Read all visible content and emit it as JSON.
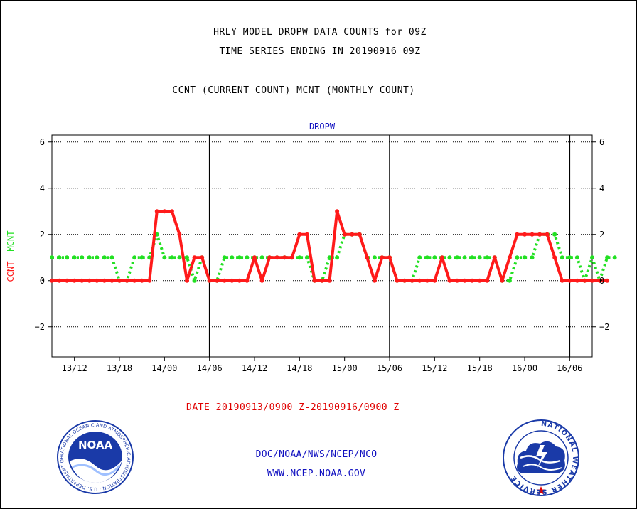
{
  "header": {
    "title_line1": "HRLY MODEL DROPW DATA COUNTS for 09Z",
    "title_line2": "TIME SERIES ENDING IN 20190916 09Z",
    "title_line3": "CCNT (CURRENT COUNT) MCNT (MONTHLY COUNT)"
  },
  "footer": {
    "date_range": "DATE 20190913/0900 Z-20190916/0900 Z",
    "credit_line1": "DOC/NOAA/NWS/NCEP/NCO",
    "credit_line2": "WWW.NCEP.NOAA.GOV"
  },
  "logos": {
    "left_text": "NOAA",
    "left_ring": "NATIONAL OCEANIC AND ATMOSPHERIC ADMINISTRATION · U.S. DEPARTMENT OF COMMERCE",
    "right_ring": "NATIONAL WEATHER SERVICE"
  },
  "colors": {
    "ccnt": "#ff1a1a",
    "mcnt": "#22e022",
    "panel_title": "#1010c0",
    "frame": "#000000"
  },
  "chart_data": {
    "type": "line",
    "panel_title": "DROPW",
    "ylabel_ccnt": "CCNT",
    "ylabel_mcnt": "MCNT",
    "ylim": [
      -3.3,
      6.3
    ],
    "yticks": [
      -2,
      0,
      2,
      4,
      6
    ],
    "xlim_hours": [
      -3,
      69
    ],
    "x_tick_labels": [
      "13/12",
      "13/18",
      "14/00",
      "14/06",
      "14/12",
      "14/18",
      "15/00",
      "15/06",
      "15/12",
      "15/18",
      "16/00",
      "16/06"
    ],
    "x_tick_hours": [
      0,
      6,
      12,
      18,
      24,
      30,
      36,
      42,
      48,
      54,
      60,
      66
    ],
    "day_boundaries_hours": [
      18,
      42,
      66
    ],
    "grid": "horizontal dotted",
    "series": [
      {
        "name": "CCNT",
        "start_hour": -3,
        "values": [
          0,
          0,
          0,
          0,
          0,
          0,
          0,
          0,
          0,
          0,
          0,
          0,
          0,
          0,
          3,
          3,
          3,
          2,
          0,
          1,
          1,
          0,
          0,
          0,
          0,
          0,
          0,
          1,
          0,
          1,
          1,
          1,
          1,
          2,
          2,
          0,
          0,
          0,
          3,
          2,
          2,
          2,
          1,
          0,
          1,
          1,
          0,
          0,
          0,
          0,
          0,
          0,
          1,
          0,
          0,
          0,
          0,
          0,
          0,
          1,
          0,
          1,
          2,
          2,
          2,
          2,
          2,
          1,
          0,
          0,
          0,
          0,
          0,
          0,
          0
        ]
      },
      {
        "name": "MCNT",
        "start_hour": -3,
        "values": [
          1,
          1,
          1,
          1,
          1,
          1,
          1,
          1,
          1,
          0,
          0,
          1,
          1,
          1,
          2,
          1,
          1,
          1,
          1,
          0,
          1,
          0,
          0,
          1,
          1,
          1,
          1,
          1,
          1,
          1,
          1,
          1,
          1,
          1,
          1,
          0,
          0,
          1,
          1,
          2,
          2,
          2,
          1,
          1,
          1,
          1,
          0,
          0,
          0,
          1,
          1,
          1,
          1,
          1,
          1,
          1,
          1,
          1,
          1,
          1,
          0,
          0,
          1,
          1,
          1,
          2,
          2,
          2,
          1,
          1,
          1,
          0,
          1,
          0,
          1,
          1
        ]
      }
    ]
  }
}
